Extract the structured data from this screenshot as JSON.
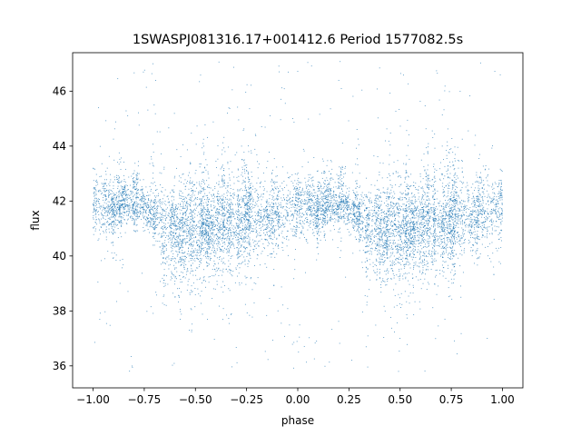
{
  "chart_data": {
    "type": "scatter",
    "title": "1SWASPJ081316.17+001412.6 Period 1577082.5s",
    "xlabel": "phase",
    "ylabel": "flux",
    "xlim": [
      -1.1,
      1.1
    ],
    "ylim": [
      35.2,
      47.4
    ],
    "xticks": [
      -1.0,
      -0.75,
      -0.5,
      -0.25,
      0.0,
      0.25,
      0.5,
      0.75,
      1.0
    ],
    "xtick_labels": [
      "−1.00",
      "−0.75",
      "−0.50",
      "−0.25",
      "0.00",
      "0.25",
      "0.50",
      "0.75",
      "1.00"
    ],
    "yticks": [
      36,
      38,
      40,
      42,
      44,
      46
    ],
    "ytick_labels": [
      "36",
      "38",
      "40",
      "42",
      "44",
      "46"
    ],
    "grid": false,
    "point_color": "#1f77b4",
    "series": [
      {
        "x_range": [
          -1.0,
          1.0
        ],
        "mirror_period": 1.0,
        "baseline_flux": 41.7,
        "typical_flux_range": [
          39.5,
          44.0
        ],
        "outlier_flux_range": [
          35.8,
          47.1
        ],
        "n_points_approx": 9000,
        "profile": [
          {
            "phase": 0.0,
            "center": 41.9,
            "spread": 0.55
          },
          {
            "phase": 0.05,
            "center": 41.7,
            "spread": 0.55
          },
          {
            "phase": 0.1,
            "center": 41.8,
            "spread": 0.35
          },
          {
            "phase": 0.2,
            "center": 41.8,
            "spread": 0.3
          },
          {
            "phase": 0.3,
            "center": 41.5,
            "spread": 0.45
          },
          {
            "phase": 0.35,
            "center": 41.0,
            "spread": 0.65
          },
          {
            "phase": 0.45,
            "center": 40.9,
            "spread": 0.8
          },
          {
            "phase": 0.55,
            "center": 41.0,
            "spread": 0.75
          },
          {
            "phase": 0.65,
            "center": 41.1,
            "spread": 0.7
          },
          {
            "phase": 0.75,
            "center": 41.2,
            "spread": 0.7
          },
          {
            "phase": 0.85,
            "center": 41.5,
            "spread": 0.6
          },
          {
            "phase": 0.95,
            "center": 41.6,
            "spread": 0.7
          },
          {
            "phase": 1.0,
            "center": 41.9,
            "spread": 0.55
          }
        ]
      }
    ]
  }
}
